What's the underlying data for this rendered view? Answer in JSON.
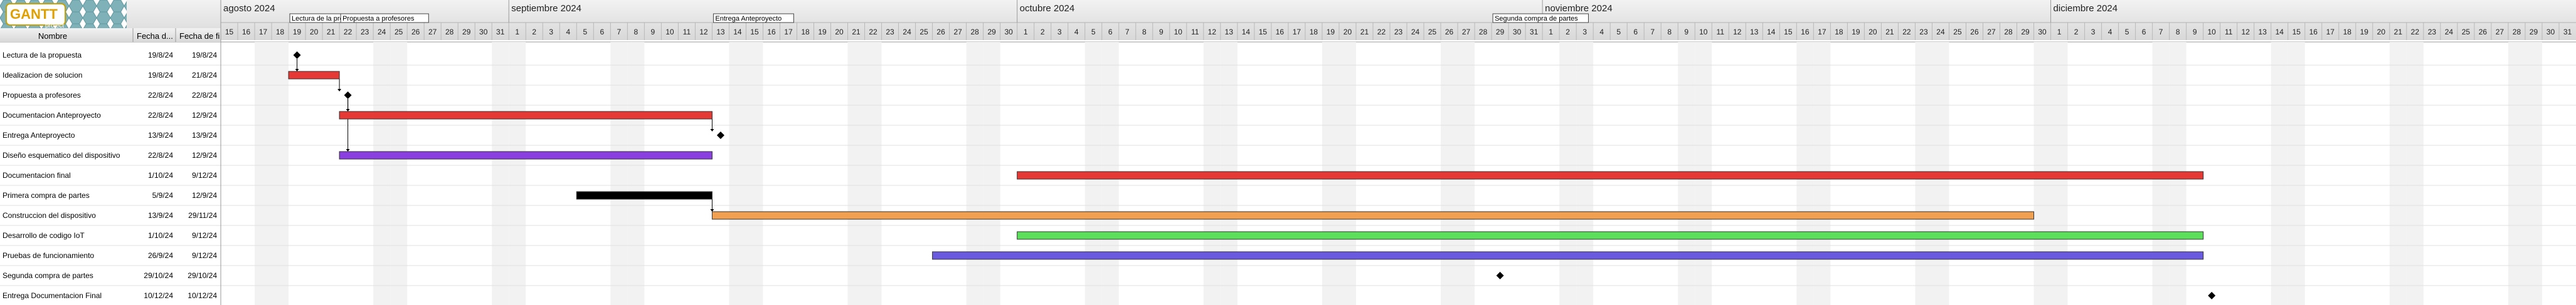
{
  "app": {
    "logo_text": "GANTT",
    "logo_sub": "project"
  },
  "columns": {
    "name": "Nombre",
    "start": "Fecha d...",
    "end": "Fecha de fi"
  },
  "timeline": {
    "start_date": "2024-08-15",
    "end_date": "2024-12-31",
    "months": [
      {
        "label": "agosto 2024",
        "date": "2024-08-15"
      },
      {
        "label": "septiembre 2024",
        "date": "2024-09-01"
      },
      {
        "label": "octubre 2024",
        "date": "2024-10-01"
      },
      {
        "label": "noviembre 2024",
        "date": "2024-11-01"
      },
      {
        "label": "diciembre 2024",
        "date": "2024-12-01"
      }
    ]
  },
  "milestone_labels": [
    {
      "text": "Lectura de la propuesta",
      "date": "2024-08-19"
    },
    {
      "text": "Propuesta a profesores",
      "date": "2024-08-22"
    },
    {
      "text": "Entrega Anteproyecto",
      "date": "2024-09-13"
    },
    {
      "text": "Segunda compra de partes",
      "date": "2024-10-29"
    }
  ],
  "tasks": [
    {
      "name": "Lectura de la propuesta",
      "start_label": "19/8/24",
      "end_label": "19/8/24",
      "start": "2024-08-19",
      "end": "2024-08-19",
      "type": "milestone"
    },
    {
      "name": "Idealizacion de solucion",
      "start_label": "19/8/24",
      "end_label": "21/8/24",
      "start": "2024-08-19",
      "end": "2024-08-21",
      "type": "bar",
      "color": "#e53935"
    },
    {
      "name": "Propuesta a profesores",
      "start_label": "22/8/24",
      "end_label": "22/8/24",
      "start": "2024-08-22",
      "end": "2024-08-22",
      "type": "milestone"
    },
    {
      "name": "Documentacion Anteproyecto",
      "start_label": "22/8/24",
      "end_label": "12/9/24",
      "start": "2024-08-22",
      "end": "2024-09-12",
      "type": "bar",
      "color": "#e53935"
    },
    {
      "name": "Entrega Anteproyecto",
      "start_label": "13/9/24",
      "end_label": "13/9/24",
      "start": "2024-09-13",
      "end": "2024-09-13",
      "type": "milestone"
    },
    {
      "name": "Diseño esquematico del dispositivo",
      "start_label": "22/8/24",
      "end_label": "12/9/24",
      "start": "2024-08-22",
      "end": "2024-09-12",
      "type": "bar",
      "color": "#8a3fe0"
    },
    {
      "name": "Documentacion final",
      "start_label": "1/10/24",
      "end_label": "9/12/24",
      "start": "2024-10-01",
      "end": "2024-12-09",
      "type": "bar",
      "color": "#e53935"
    },
    {
      "name": "Primera compra de partes",
      "start_label": "5/9/24",
      "end_label": "12/9/24",
      "start": "2024-09-05",
      "end": "2024-09-12",
      "type": "bar",
      "color": "#000000"
    },
    {
      "name": "Construccion del dispositivo",
      "start_label": "13/9/24",
      "end_label": "29/11/24",
      "start": "2024-09-13",
      "end": "2024-11-29",
      "type": "bar",
      "color": "#f0a050"
    },
    {
      "name": "Desarrollo de codigo IoT",
      "start_label": "1/10/24",
      "end_label": "9/12/24",
      "start": "2024-10-01",
      "end": "2024-12-09",
      "type": "bar",
      "color": "#5ce05c"
    },
    {
      "name": "Pruebas de funcionamiento",
      "start_label": "26/9/24",
      "end_label": "9/12/24",
      "start": "2024-09-26",
      "end": "2024-12-09",
      "type": "bar",
      "color": "#6a5ae0"
    },
    {
      "name": "Segunda compra de partes",
      "start_label": "29/10/24",
      "end_label": "29/10/24",
      "start": "2024-10-29",
      "end": "2024-10-29",
      "type": "milestone"
    },
    {
      "name": "Entrega Documentacion Final",
      "start_label": "10/12/24",
      "end_label": "10/12/24",
      "start": "2024-12-10",
      "end": "2024-12-10",
      "type": "milestone"
    }
  ],
  "dependencies": [
    [
      0,
      1
    ],
    [
      1,
      2
    ],
    [
      2,
      3
    ],
    [
      2,
      5
    ],
    [
      3,
      4
    ],
    [
      7,
      8
    ]
  ]
}
